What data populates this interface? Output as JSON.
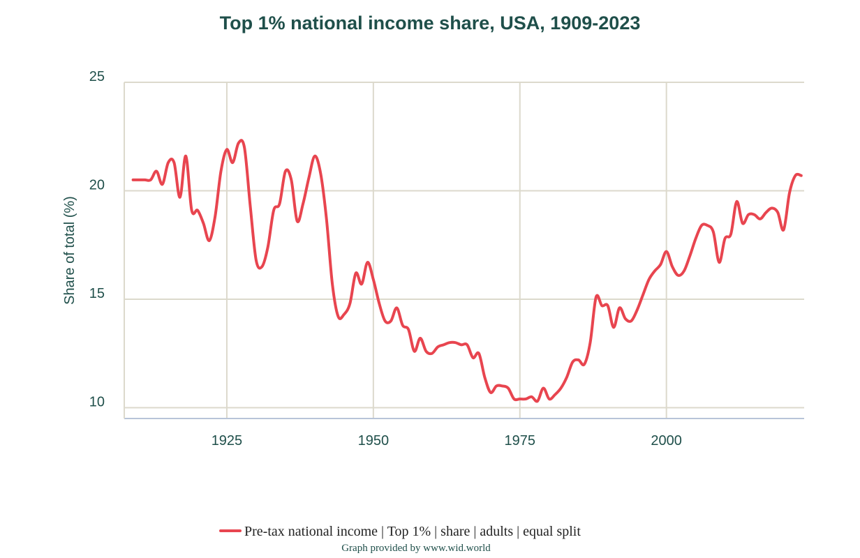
{
  "colors": {
    "title": "#1f4f4a",
    "tick": "#1f4f4a",
    "grid": "#dcd9cc",
    "axis": "#b8c4d8",
    "series": "#e8454f",
    "legend_text": "#222222",
    "credit": "#1f4f4a"
  },
  "chart_data": {
    "type": "line",
    "title": "Top 1% national income share, USA, 1909-2023",
    "xlabel": "",
    "ylabel": "Share of total (%)",
    "xlim": [
      1907.5,
      2023.5
    ],
    "ylim": [
      9.5,
      25
    ],
    "x_ticks": [
      1925,
      1950,
      1975,
      2000
    ],
    "y_ticks": [
      10,
      15,
      20,
      25
    ],
    "grid": true,
    "legend_position": "bottom",
    "credit": "Graph provided by www.wid.world",
    "series": [
      {
        "name": "Pre-tax national income | Top 1% | share | adults | equal split",
        "x": [
          1909,
          1910,
          1911,
          1912,
          1913,
          1914,
          1915,
          1916,
          1917,
          1918,
          1919,
          1920,
          1921,
          1922,
          1923,
          1924,
          1925,
          1926,
          1927,
          1928,
          1929,
          1930,
          1931,
          1932,
          1933,
          1934,
          1935,
          1936,
          1937,
          1938,
          1939,
          1940,
          1941,
          1942,
          1943,
          1944,
          1945,
          1946,
          1947,
          1948,
          1949,
          1950,
          1951,
          1952,
          1953,
          1954,
          1955,
          1956,
          1957,
          1958,
          1959,
          1960,
          1961,
          1962,
          1963,
          1964,
          1965,
          1966,
          1967,
          1968,
          1969,
          1970,
          1971,
          1972,
          1973,
          1974,
          1975,
          1976,
          1977,
          1978,
          1979,
          1980,
          1981,
          1982,
          1983,
          1984,
          1985,
          1986,
          1987,
          1988,
          1989,
          1990,
          1991,
          1992,
          1993,
          1994,
          1995,
          1996,
          1997,
          1998,
          1999,
          2000,
          2001,
          2002,
          2003,
          2004,
          2005,
          2006,
          2007,
          2008,
          2009,
          2010,
          2011,
          2012,
          2013,
          2014,
          2015,
          2016,
          2017,
          2018,
          2019,
          2020,
          2021,
          2022,
          2023
        ],
        "y": [
          20.5,
          20.5,
          20.5,
          20.5,
          20.9,
          20.3,
          21.3,
          21.3,
          19.7,
          21.6,
          19.1,
          19.1,
          18.5,
          17.7,
          18.8,
          20.9,
          21.9,
          21.3,
          22.2,
          22.0,
          19.3,
          16.8,
          16.5,
          17.4,
          19.1,
          19.4,
          20.9,
          20.5,
          18.6,
          19.4,
          20.6,
          21.6,
          20.8,
          18.7,
          15.7,
          14.2,
          14.3,
          14.8,
          16.2,
          15.7,
          16.7,
          15.9,
          14.8,
          14.0,
          14.0,
          14.6,
          13.8,
          13.6,
          12.6,
          13.2,
          12.6,
          12.5,
          12.8,
          12.9,
          13.0,
          13.0,
          12.9,
          12.9,
          12.3,
          12.5,
          11.4,
          10.7,
          11.0,
          11.0,
          10.9,
          10.4,
          10.4,
          10.4,
          10.5,
          10.3,
          10.9,
          10.4,
          10.6,
          10.9,
          11.4,
          12.1,
          12.2,
          12.0,
          13.0,
          15.1,
          14.7,
          14.7,
          13.7,
          14.6,
          14.1,
          14.0,
          14.5,
          15.2,
          15.9,
          16.3,
          16.6,
          17.2,
          16.5,
          16.1,
          16.3,
          17.0,
          17.8,
          18.4,
          18.4,
          18.1,
          16.7,
          17.8,
          18.0,
          19.5,
          18.5,
          18.9,
          18.9,
          18.7,
          19.0,
          19.2,
          19.0,
          18.2,
          19.9,
          20.7,
          20.7
        ]
      }
    ]
  }
}
